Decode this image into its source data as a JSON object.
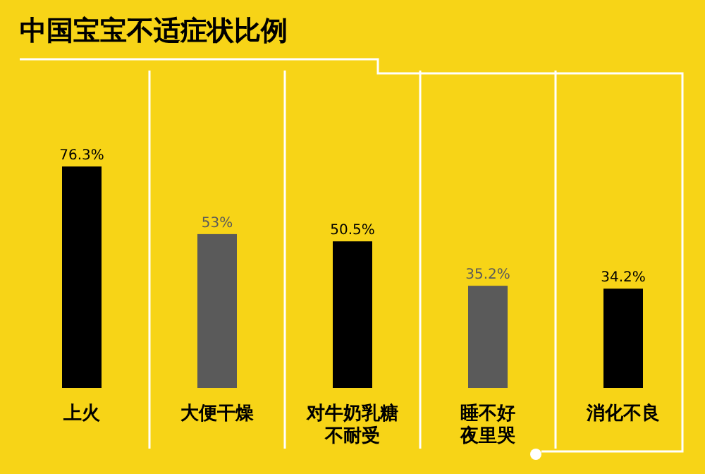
{
  "chart_data": {
    "type": "bar",
    "title": "中国宝宝不适症状比例",
    "categories": [
      "上火",
      "大便干燥",
      "对牛奶乳糖不耐受",
      "睡不好夜里哭",
      "消化不良"
    ],
    "values": [
      76.3,
      53,
      50.5,
      35.2,
      34.2
    ],
    "value_labels": [
      "76.3%",
      "53%",
      "50.5%",
      "35.2%",
      "34.2%"
    ],
    "colors": [
      "#000000",
      "#5a5a5a",
      "#000000",
      "#5a5a5a",
      "#000000"
    ]
  }
}
